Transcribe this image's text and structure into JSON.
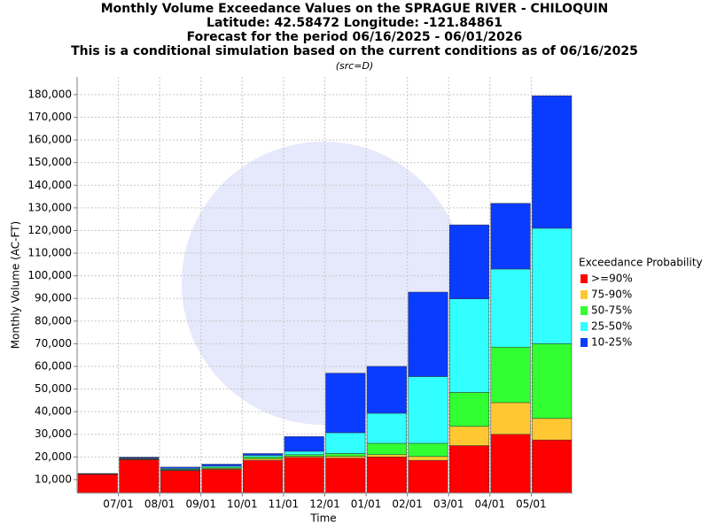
{
  "chart_data": {
    "type": "stacked_bar",
    "title": "Monthly Volume Exceedance Values on the SPRAGUE RIVER - CHILOQUIN",
    "subtitle_lines": [
      "Latitude: 42.58472 Longitude: -121.84861",
      "Forecast for the period 06/16/2025 - 06/01/2026",
      "This is a conditional simulation based on the current conditions as of 06/16/2025"
    ],
    "source_note": "(src=D)",
    "x_label": "Time",
    "y_label": "Monthly Volume (AC-FT)",
    "legend_title": "Exceedance Probability",
    "legend_position": "right",
    "grid": true,
    "categories": [
      null,
      "07/01",
      "08/01",
      "09/01",
      "10/01",
      "11/01",
      "12/01",
      "01/01",
      "02/01",
      "03/01",
      "04/01",
      "05/01"
    ],
    "series": [
      {
        "name": ">=90%",
        "color": "#ff0000",
        "values": [
          12300,
          18800,
          14000,
          14500,
          18500,
          19800,
          19500,
          20000,
          18500,
          25000,
          30000,
          27500
        ]
      },
      {
        "name": "75-90%",
        "color": "#ffc832",
        "values": [
          100,
          200,
          200,
          400,
          700,
          500,
          800,
          1000,
          1700,
          8500,
          14000,
          9500
        ]
      },
      {
        "name": "50-75%",
        "color": "#32ff32",
        "values": [
          100,
          300,
          300,
          500,
          800,
          700,
          1200,
          5000,
          5800,
          15000,
          24500,
          33000
        ]
      },
      {
        "name": "25-50%",
        "color": "#32ffff",
        "values": [
          100,
          200,
          400,
          600,
          700,
          1500,
          9200,
          13300,
          29500,
          41300,
          34500,
          51000
        ]
      },
      {
        "name": "10-25%",
        "color": "#0a3cff",
        "values": [
          100,
          400,
          600,
          800,
          800,
          6500,
          26300,
          20700,
          37300,
          32700,
          29000,
          58500
        ]
      }
    ],
    "ylim": [
      4100,
      187800
    ],
    "yticks": [
      {
        "value": 10000,
        "label": "10,000"
      },
      {
        "value": 20000,
        "label": "20,000"
      },
      {
        "value": 30000,
        "label": "30,000"
      },
      {
        "value": 40000,
        "label": "40,000"
      },
      {
        "value": 50000,
        "label": "50,000"
      },
      {
        "value": 60000,
        "label": "60,000"
      },
      {
        "value": 70000,
        "label": "70,000"
      },
      {
        "value": 80000,
        "label": "80,000"
      },
      {
        "value": 90000,
        "label": "90,000"
      },
      {
        "value": 100000,
        "label": "100,000"
      },
      {
        "value": 110000,
        "label": "110,000"
      },
      {
        "value": 120000,
        "label": "120,000"
      },
      {
        "value": 130000,
        "label": "130,000"
      },
      {
        "value": 140000,
        "label": "140,000"
      },
      {
        "value": 150000,
        "label": "150,000"
      },
      {
        "value": 160000,
        "label": "160,000"
      },
      {
        "value": 170000,
        "label": "170,000"
      },
      {
        "value": 180000,
        "label": "180,000"
      }
    ]
  }
}
